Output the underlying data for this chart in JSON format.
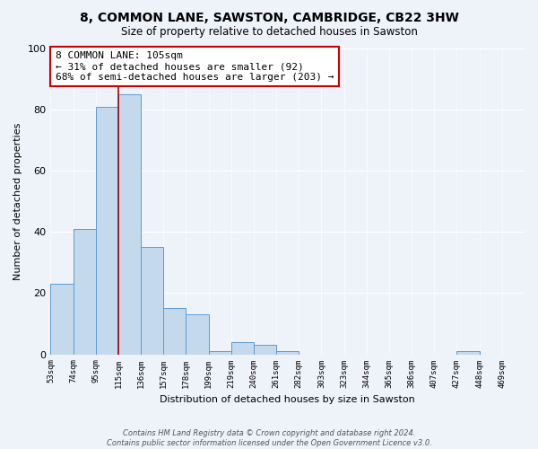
{
  "title": "8, COMMON LANE, SAWSTON, CAMBRIDGE, CB22 3HW",
  "subtitle": "Size of property relative to detached houses in Sawston",
  "xlabel": "Distribution of detached houses by size in Sawston",
  "ylabel": "Number of detached properties",
  "bin_labels": [
    "53sqm",
    "74sqm",
    "95sqm",
    "115sqm",
    "136sqm",
    "157sqm",
    "178sqm",
    "199sqm",
    "219sqm",
    "240sqm",
    "261sqm",
    "282sqm",
    "303sqm",
    "323sqm",
    "344sqm",
    "365sqm",
    "386sqm",
    "407sqm",
    "427sqm",
    "448sqm",
    "469sqm"
  ],
  "bar_heights": [
    23,
    41,
    81,
    85,
    35,
    15,
    13,
    1,
    4,
    3,
    1,
    0,
    0,
    0,
    0,
    0,
    0,
    0,
    1,
    0,
    0
  ],
  "bar_color": "#c5d9ed",
  "bar_edge_color": "#5b9bd5",
  "vline_color": "#aa0000",
  "vline_bar_index": 3,
  "ylim": [
    0,
    100
  ],
  "yticks": [
    0,
    20,
    40,
    60,
    80,
    100
  ],
  "background_color": "#eef2f9",
  "grid_color": "#ffffff",
  "annotation_text_line1": "8 COMMON LANE: 105sqm",
  "annotation_text_line2": "← 31% of detached houses are smaller (92)",
  "annotation_text_line3": "68% of semi-detached houses are larger (203) →",
  "ann_box_color": "#cc0000",
  "footnote_line1": "Contains HM Land Registry data © Crown copyright and database right 2024.",
  "footnote_line2": "Contains public sector information licensed under the Open Government Licence v3.0."
}
